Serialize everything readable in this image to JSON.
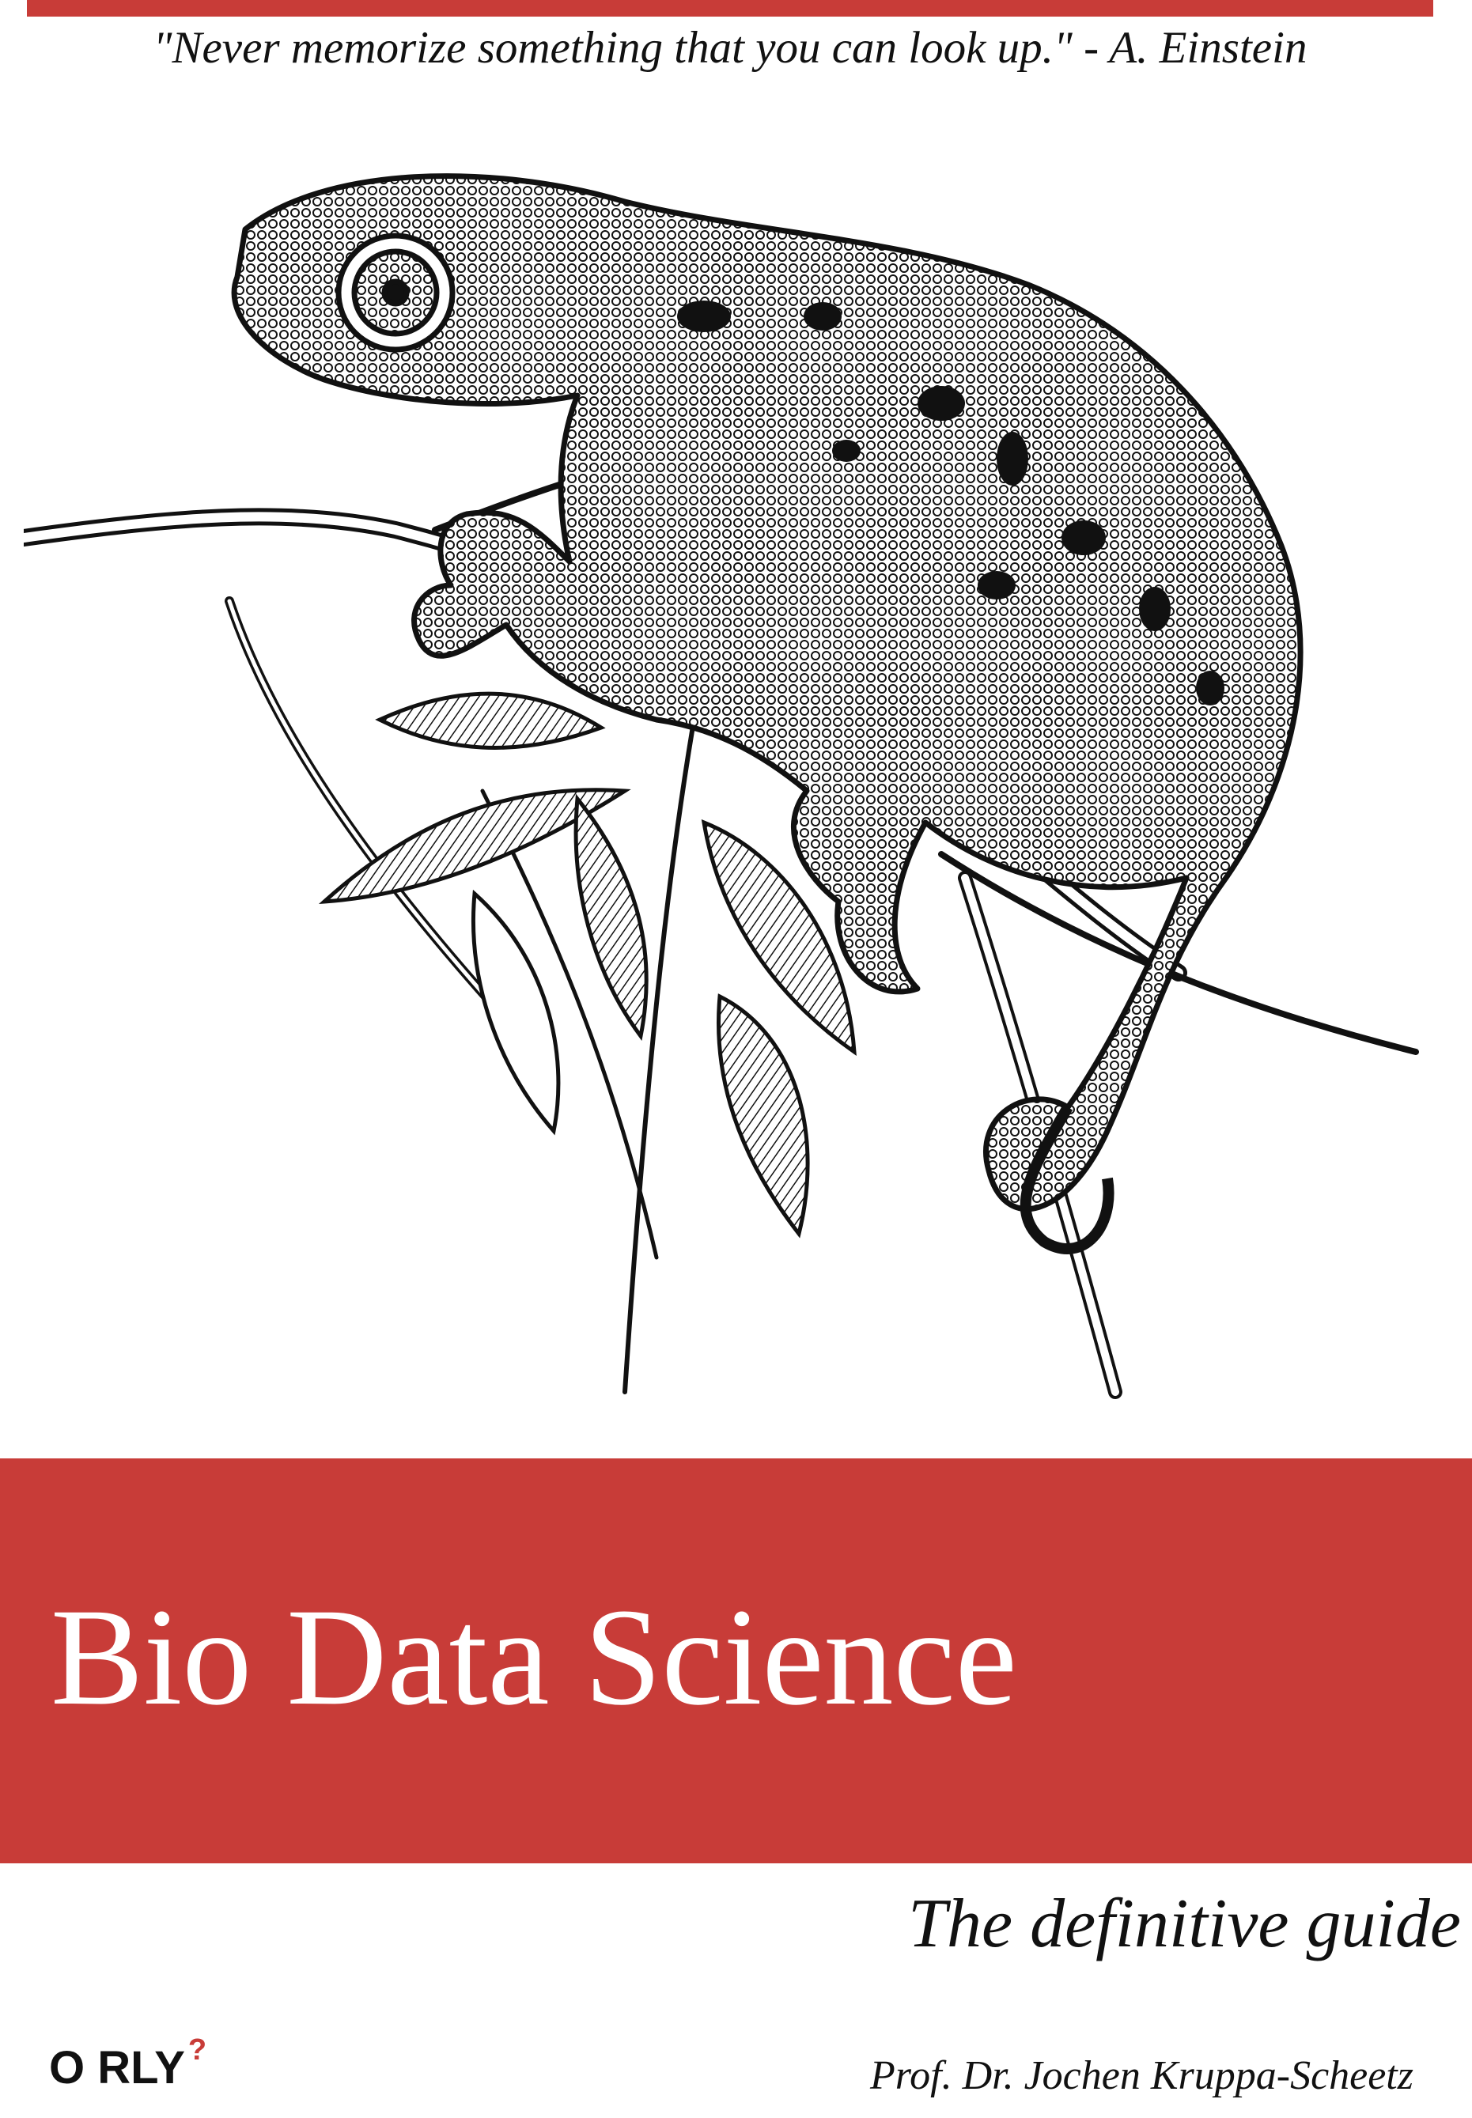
{
  "cover": {
    "quote": "\"Never memorize something that you can look up.\" - A. Einstein",
    "title": "Bio Data Science",
    "subtitle": "The definitive guide",
    "publisher": "O RLY",
    "publisher_mark": "?",
    "author": "Prof. Dr. Jochen Kruppa-Scheetz"
  },
  "colors": {
    "accent": "#c83c38",
    "text": "#111111",
    "background": "#ffffff"
  },
  "illustration": {
    "icon": "chameleon-illustration"
  }
}
